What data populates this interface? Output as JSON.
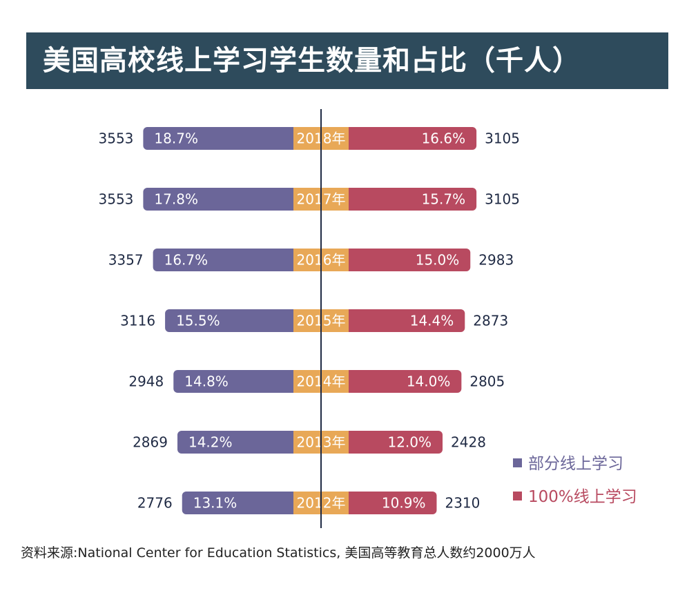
{
  "title": "美国高校线上学习学生数量和占比（千人）",
  "colors": {
    "partial": "#6b6699",
    "full": "#b84a60",
    "year_badge": "#e8a857",
    "title_bg": "#2e4b5c",
    "axis": "#1f2a44"
  },
  "legend": {
    "partial_label": "部分线上学习",
    "full_label": "100%线上学习"
  },
  "source": "资料来源:National Center for Education Statistics, 美国高等教育总人数约2000万人",
  "chart_data": {
    "type": "bar",
    "orientation": "diverging-horizontal",
    "title": "美国高校线上学习学生数量和占比（千人）",
    "unit": "千人",
    "categories": [
      "2018年",
      "2017年",
      "2016年",
      "2015年",
      "2014年",
      "2013年",
      "2012年"
    ],
    "series": [
      {
        "name": "部分线上学习",
        "values": [
          3553,
          3553,
          3357,
          3116,
          2948,
          2869,
          2776
        ],
        "percent_labels": [
          "18.7%",
          "17.8%",
          "16.7%",
          "15.5%",
          "14.8%",
          "14.2%",
          "13.1%"
        ]
      },
      {
        "name": "100%线上学习",
        "values": [
          3105,
          3105,
          2983,
          2873,
          2805,
          2428,
          2310
        ],
        "percent_labels": [
          "16.6%",
          "15.7%",
          "15.0%",
          "14.4%",
          "14.0%",
          "12.0%",
          "10.9%"
        ]
      }
    ],
    "legend_position": "bottom-right"
  }
}
